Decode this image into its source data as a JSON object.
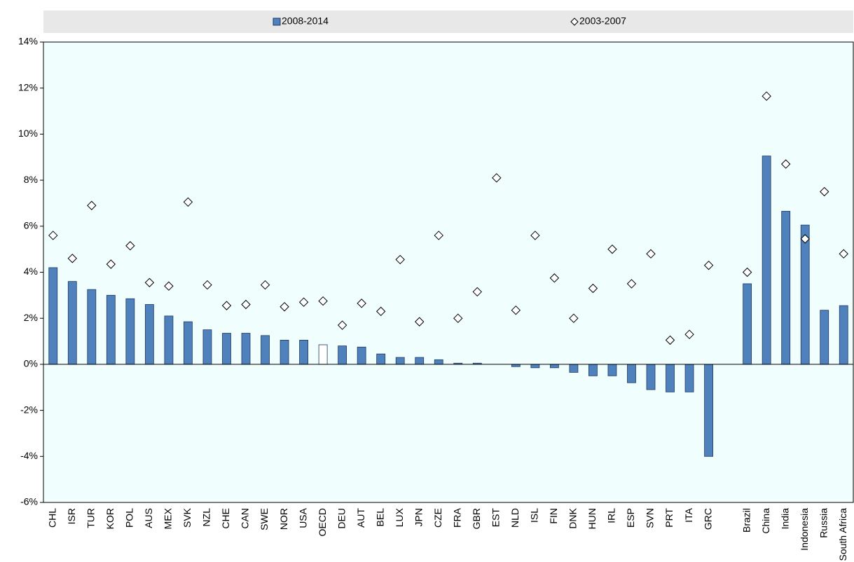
{
  "chart_data": {
    "type": "bar",
    "legend": "top",
    "background": "#f0fefe",
    "categories": [
      "CHL",
      "ISR",
      "TUR",
      "KOR",
      "POL",
      "AUS",
      "MEX",
      "SVK",
      "NZL",
      "CHE",
      "CAN",
      "SWE",
      "NOR",
      "USA",
      "OECD",
      "DEU",
      "AUT",
      "BEL",
      "LUX",
      "JPN",
      "CZE",
      "FRA",
      "GBR",
      "EST",
      "NLD",
      "ISL",
      "FIN",
      "DNK",
      "HUN",
      "IRL",
      "ESP",
      "SVN",
      "PRT",
      "ITA",
      "GRC",
      null,
      "Brazil",
      "China",
      "India",
      "Indonesia",
      "Russia",
      "South Africa"
    ],
    "series": [
      {
        "name": "2008-2014",
        "type": "bar",
        "color": "#4f81bd",
        "colors": [
          "#4f81bd",
          "#4f81bd",
          "#4f81bd",
          "#4f81bd",
          "#4f81bd",
          "#4f81bd",
          "#4f81bd",
          "#4f81bd",
          "#4f81bd",
          "#4f81bd",
          "#4f81bd",
          "#4f81bd",
          "#4f81bd",
          "#4f81bd",
          "#ffffff",
          "#4f81bd",
          "#4f81bd",
          "#4f81bd",
          "#4f81bd",
          "#4f81bd",
          "#4f81bd",
          "#4f81bd",
          "#4f81bd",
          "#4f81bd",
          "#4f81bd",
          "#4f81bd",
          "#4f81bd",
          "#4f81bd",
          "#4f81bd",
          "#4f81bd",
          "#4f81bd",
          "#4f81bd",
          "#4f81bd",
          "#4f81bd",
          "#4f81bd",
          "#4f81bd",
          "#4f81bd",
          "#4f81bd",
          "#4f81bd",
          "#4f81bd",
          "#4f81bd",
          "#4f81bd"
        ],
        "values": [
          4.2,
          3.6,
          3.25,
          3.0,
          2.85,
          2.6,
          2.1,
          1.85,
          1.5,
          1.35,
          1.35,
          1.25,
          1.05,
          1.05,
          0.85,
          0.8,
          0.75,
          0.45,
          0.3,
          0.3,
          0.2,
          0.05,
          0.05,
          0.0,
          -0.1,
          -0.15,
          -0.15,
          -0.35,
          -0.5,
          -0.5,
          -0.8,
          -1.1,
          -1.2,
          -1.2,
          -4.0,
          null,
          3.5,
          9.05,
          6.65,
          6.05,
          2.35,
          2.55
        ]
      },
      {
        "name": "2003-2007",
        "type": "diamond",
        "color": "#ffffff",
        "values": [
          5.6,
          4.6,
          6.9,
          4.35,
          5.15,
          3.55,
          3.4,
          7.05,
          3.45,
          2.55,
          2.6,
          3.45,
          2.5,
          2.7,
          2.75,
          1.7,
          2.65,
          2.3,
          4.55,
          1.85,
          5.6,
          2.0,
          3.15,
          8.1,
          2.35,
          5.6,
          3.75,
          2.0,
          3.3,
          5.0,
          3.5,
          4.8,
          1.05,
          1.3,
          4.3,
          null,
          4.0,
          11.65,
          8.7,
          5.45,
          7.5,
          4.8
        ]
      }
    ],
    "ylim": [
      -6,
      14
    ],
    "yticks": [
      {
        "value": -6,
        "label": "-6%"
      },
      {
        "value": -4,
        "label": "-4%"
      },
      {
        "value": -2,
        "label": "-2%"
      },
      {
        "value": 0,
        "label": "0%"
      },
      {
        "value": 2,
        "label": "2%"
      },
      {
        "value": 4,
        "label": "4%"
      },
      {
        "value": 6,
        "label": "6%"
      },
      {
        "value": 8,
        "label": "8%"
      },
      {
        "value": 10,
        "label": "10%"
      },
      {
        "value": 12,
        "label": "12%"
      },
      {
        "value": 14,
        "label": "14%"
      }
    ]
  }
}
